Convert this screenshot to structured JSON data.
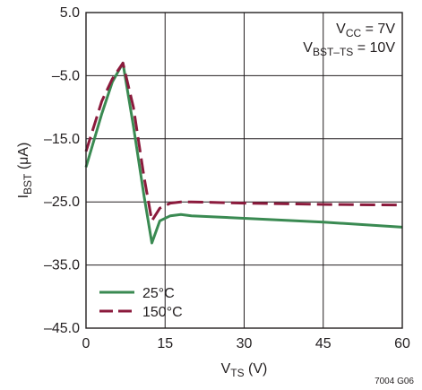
{
  "chart_data": {
    "type": "line",
    "xlabel": {
      "main": "V",
      "sub": "TS",
      "unit": " (V)"
    },
    "ylabel": {
      "main": "I",
      "sub": "BST",
      "unit": " (μA)"
    },
    "xlim": [
      0,
      60
    ],
    "ylim": [
      -45,
      5
    ],
    "x_ticks": [
      0,
      15,
      30,
      45,
      60
    ],
    "x_tick_labels": [
      "0",
      "15",
      "30",
      "45",
      "60"
    ],
    "y_ticks": [
      5,
      -5,
      -15,
      -25,
      -35,
      -45
    ],
    "y_tick_labels": [
      "5.0",
      "–5.0",
      "–15.0",
      "–25.0",
      "–35.0",
      "–45.0"
    ],
    "grid": true,
    "legend_position": "bottom-left",
    "annotations": [
      {
        "main": "V",
        "sub": "CC",
        "rest": " = 7V"
      },
      {
        "main": "V",
        "sub": "BST–TS",
        "rest": " = 10V"
      }
    ],
    "series": [
      {
        "name": "25°C",
        "color": "#3a8a52",
        "style": "solid",
        "x": [
          0,
          3,
          5,
          7,
          9,
          11,
          12.5,
          14,
          16,
          18,
          20,
          30,
          45,
          60
        ],
        "y": [
          -19.5,
          -11,
          -6,
          -3,
          -13,
          -24,
          -31.5,
          -28,
          -27.2,
          -27,
          -27.2,
          -27.6,
          -28.2,
          -29
        ]
      },
      {
        "name": "150°C",
        "color": "#8b1a3c",
        "style": "dashed",
        "x": [
          0,
          3,
          5,
          7,
          9,
          11,
          12.5,
          14,
          16,
          18,
          20,
          30,
          45,
          60
        ],
        "y": [
          -17,
          -9,
          -5.5,
          -3,
          -10,
          -21,
          -28,
          -26,
          -25.2,
          -25,
          -25,
          -25.2,
          -25.4,
          -25.5
        ]
      }
    ]
  },
  "figure_id": "7004 G06"
}
